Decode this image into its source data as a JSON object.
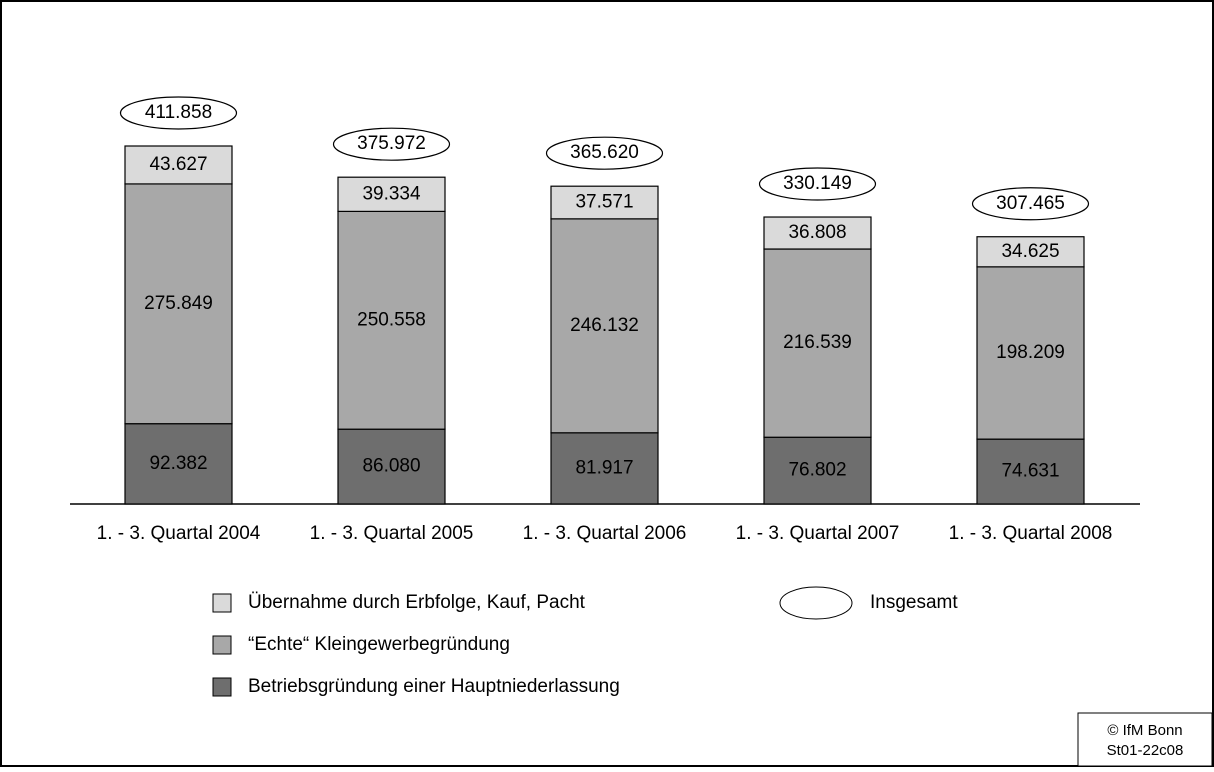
{
  "chart_data": {
    "type": "stacked-bar",
    "categories": [
      "1. - 3. Quartal 2004",
      "1. - 3. Quartal 2005",
      "1. - 3. Quartal 2006",
      "1. - 3. Quartal 2007",
      "1. - 3. Quartal 2008"
    ],
    "series": [
      {
        "name": "Betriebsgründung einer Hauptniederlassung",
        "color": "#6e6e6e",
        "values": [
          92382,
          86080,
          81917,
          76802,
          74631
        ],
        "value_labels": [
          "92.382",
          "86.080",
          "81.917",
          "76.802",
          "74.631"
        ]
      },
      {
        "name": "“Echte“ Kleingewerbegründung",
        "color": "#a8a8a8",
        "values": [
          275849,
          250558,
          246132,
          216539,
          198209
        ],
        "value_labels": [
          "275.849",
          "250.558",
          "246.132",
          "216.539",
          "198.209"
        ]
      },
      {
        "name": "Übernahme durch Erbfolge, Kauf, Pacht",
        "color": "#dadada",
        "values": [
          43627,
          39334,
          37571,
          36808,
          34625
        ],
        "value_labels": [
          "43.627",
          "39.334",
          "37.571",
          "36.808",
          "34.625"
        ]
      }
    ],
    "totals": {
      "name": "Insgesamt",
      "values": [
        411858,
        375972,
        365620,
        330149,
        307465
      ],
      "value_labels": [
        "411.858",
        "375.972",
        "365.620",
        "330.149",
        "307.465"
      ]
    },
    "footer": [
      "© IfM Bonn",
      "St01-22c08"
    ]
  }
}
